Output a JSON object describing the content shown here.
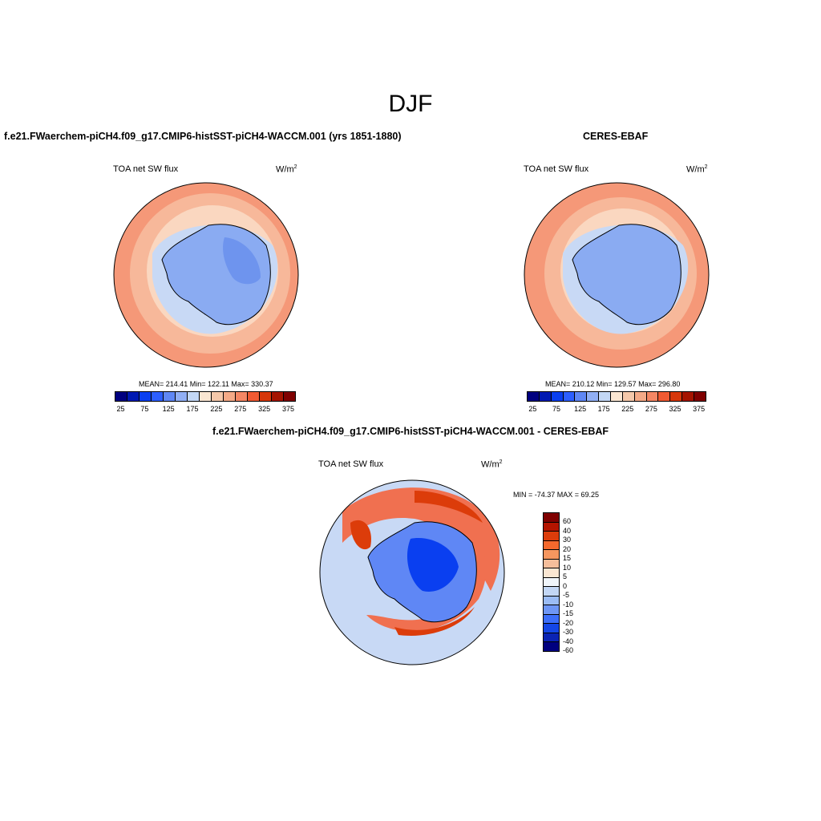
{
  "main_title": "DJF",
  "panels": {
    "model": {
      "title": "f.e21.FWaerchem-piCH4.f09_g17.CMIP6-histSST-piCH4-WACCM.001 (yrs 1851-1880)",
      "variable": "TOA net SW flux",
      "units": "W/m",
      "units_sup": "2",
      "stats": "MEAN= 214.41  Min= 122.11  Max= 330.37"
    },
    "obs": {
      "title": "CERES-EBAF",
      "variable": "TOA net SW flux",
      "units": "W/m",
      "units_sup": "2",
      "stats": "MEAN= 210.12  Min= 129.57  Max= 296.80"
    },
    "diff": {
      "title": "f.e21.FWaerchem-piCH4.f09_g17.CMIP6-histSST-piCH4-WACCM.001 - CERES-EBAF",
      "variable": "TOA net SW flux",
      "units": "W/m",
      "units_sup": "2",
      "stats": "MIN = -74.37 MAX =  69.25"
    }
  },
  "abs_colorbar": {
    "colors": [
      "#00007f",
      "#0019b2",
      "#0a3ff0",
      "#2d5fff",
      "#5f87f5",
      "#91aff5",
      "#c3d7f5",
      "#fae6d2",
      "#f5c8aa",
      "#f5aa87",
      "#f58764",
      "#f05a32",
      "#d7370a",
      "#a51400",
      "#7f0000"
    ],
    "tick_labels": [
      "25",
      "75",
      "125",
      "175",
      "225",
      "275",
      "325",
      "375"
    ]
  },
  "diff_colorbar": {
    "colors": [
      "#7f0000",
      "#b41400",
      "#dc3c0a",
      "#f5692d",
      "#f5965f",
      "#f5be9b",
      "#fae6d2",
      "#f0f5fa",
      "#c3d7f5",
      "#9bbcf5",
      "#6e96f5",
      "#3c6efa",
      "#1446e6",
      "#0a23b4",
      "#00007f"
    ],
    "labels": [
      "60",
      "40",
      "30",
      "20",
      "15",
      "10",
      "5",
      "0",
      "-5",
      "-10",
      "-15",
      "-20",
      "-30",
      "-40",
      "-60"
    ]
  },
  "map_colors": {
    "ocean_outer": "#f59878",
    "ocean_mid": "#f7b89a",
    "ocean_inner": "#fad7c0",
    "ice_edge": "#c8d9f5",
    "continent": "#8aabf2",
    "continent_dark": "#6e94ee",
    "diff_bg": "#c8d9f5",
    "diff_red": "#f07050",
    "diff_dark_red": "#dc3c0a",
    "diff_blue": "#5f87f5",
    "diff_deep_blue": "#0a3ff0"
  }
}
